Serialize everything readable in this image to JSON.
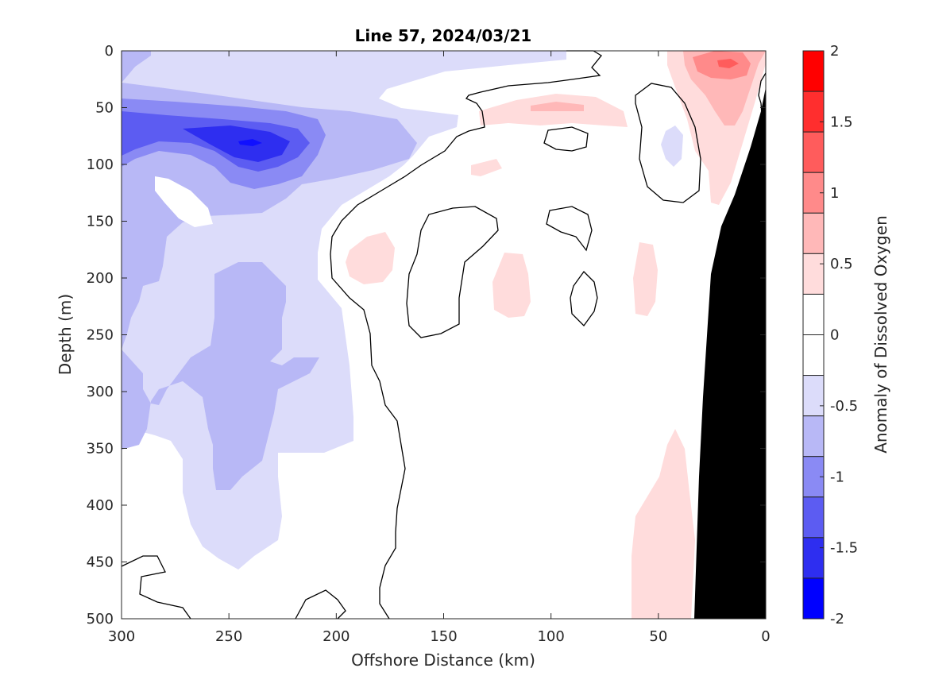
{
  "chart_data": {
    "type": "contour",
    "title": "Line 57, 2024/03/21",
    "xlabel": "Offshore Distance (km)",
    "ylabel": "Depth (m)",
    "xlim": [
      300,
      0
    ],
    "ylim": [
      0,
      500
    ],
    "x_reversed": true,
    "y_reversed": true,
    "x_ticks": [
      300,
      250,
      200,
      150,
      100,
      50,
      0
    ],
    "y_ticks": [
      0,
      50,
      100,
      150,
      200,
      250,
      300,
      350,
      400,
      450,
      500
    ],
    "colorbar": {
      "label": "Anomaly of Dissolved Oxygen",
      "range": [
        -2,
        2
      ],
      "step": 0.25,
      "ticks": [
        2,
        1.5,
        1,
        0.5,
        0,
        -0.5,
        -1,
        -1.5,
        -2
      ],
      "tick_labels": [
        "2",
        "1.5",
        "1",
        "0.5",
        "0",
        "-0.5",
        "-1",
        "-1.5",
        "-2"
      ],
      "colors_top_to_bottom": [
        "#ff0000",
        "#ff2e2e",
        "#ff5c5c",
        "#ff8a8a",
        "#ffb8b8",
        "#ffdcdc",
        "#ffffff",
        "#ffffff",
        "#dcdcfa",
        "#b8b8f6",
        "#8a8af4",
        "#5c5cf2",
        "#2e2ef0",
        "#0000ff"
      ]
    },
    "seafloor_color": "#000000",
    "zero_contour_color": "#000000"
  }
}
